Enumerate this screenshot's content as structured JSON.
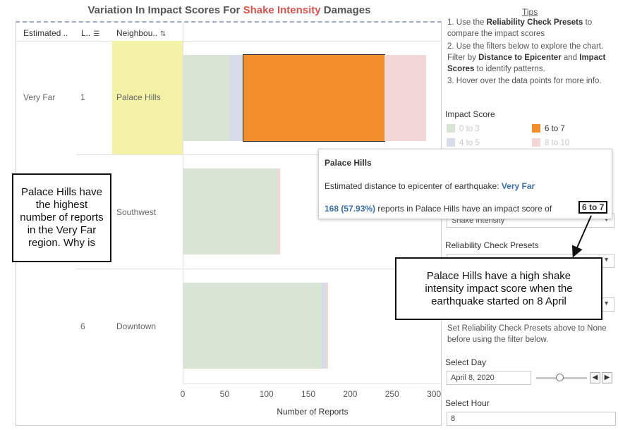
{
  "title": {
    "prefix": "Variation In Impact Scores For ",
    "highlight": "Shake Intensity",
    "suffix": " Damages"
  },
  "table": {
    "columns": [
      "Estimated ..",
      "L..",
      "Neighbou.."
    ],
    "rows": [
      {
        "distance": "Very Far",
        "rank": "1",
        "neighbourhood": "Palace Hills"
      },
      {
        "distance": "",
        "rank": "",
        "neighbourhood": "Southwest"
      },
      {
        "distance": "",
        "rank": "6",
        "neighbourhood": "Downtown"
      }
    ]
  },
  "chart_data": {
    "type": "bar",
    "orientation": "horizontal",
    "stacked": true,
    "categories": [
      "Palace Hills",
      "Southwest",
      "Downtown"
    ],
    "series": [
      {
        "name": "0 to 3",
        "color": "#d8e4d4",
        "values": [
          55,
          112,
          165
        ]
      },
      {
        "name": "4 to 5",
        "color": "#d7dde8",
        "values": [
          17,
          0,
          5
        ]
      },
      {
        "name": "6 to 7",
        "color": "#f28e2b",
        "values": [
          168,
          0,
          0
        ]
      },
      {
        "name": "8 to 10",
        "color": "#f3d6d6",
        "values": [
          50,
          3,
          3
        ]
      }
    ],
    "xlabel": "Number of Reports",
    "xlim": [
      0,
      310
    ],
    "xticks": [
      "0",
      "50",
      "100",
      "150",
      "200",
      "250",
      "300"
    ]
  },
  "tips": {
    "title": "Tips",
    "line1a": "1. Use the ",
    "line1b": "Reliability Check Presets",
    "line1c": " to compare the impact scores",
    "line2a": "2. Use the filters below to explore the chart. Filter by ",
    "line2b": "Distance to Epicenter",
    "line2c": " and ",
    "line2d": "Impact Scores",
    "line2e": " to identify patterns.",
    "line3": "3. Hover over the data points for more info."
  },
  "legend": {
    "title": "Impact Score",
    "items": [
      {
        "label": "0 to 3",
        "color": "#d8e4d4",
        "dim": true
      },
      {
        "label": "6 to 7",
        "color": "#f28e2b",
        "dim": false
      },
      {
        "label": "4 to 5",
        "color": "#d7dde8",
        "dim": true
      },
      {
        "label": "8 to 10",
        "color": "#f3d6d6",
        "dim": true
      }
    ]
  },
  "filters": {
    "damage_type_value": "Shake Intensity",
    "reliability_label": "Reliability Check Presets",
    "reliability_note": "Set Reliability Check Presets above to None before using the filter below.",
    "select_day_label": "Select Day",
    "select_day_value": "April 8, 2020",
    "select_hour_label": "Select Hour",
    "select_hour_value": "8"
  },
  "tooltip": {
    "title": "Palace Hills",
    "line1_prefix": "Estimated distance to epicenter of earthquake: ",
    "line1_value": "Very Far",
    "line2_value": "168 (57.93%)",
    "line2_mid": " reports in Palace Hills have an impact score of",
    "line2_box": "6 to 7"
  },
  "callouts": {
    "left": "Palace Hills have the highest number of reports in the Very Far region. Why is",
    "right": "Palace Hills have a high shake intensity impact score when the earthquake started on 8 April"
  }
}
